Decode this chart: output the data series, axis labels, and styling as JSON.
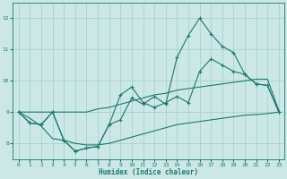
{
  "xlabel": "Humidex (Indice chaleur)",
  "x_values": [
    0,
    1,
    2,
    3,
    4,
    5,
    6,
    7,
    8,
    9,
    10,
    11,
    12,
    13,
    14,
    15,
    16,
    17,
    18,
    19,
    20,
    21,
    22,
    23
  ],
  "line1_marked": [
    9.0,
    8.65,
    8.6,
    9.0,
    8.1,
    7.75,
    7.85,
    7.9,
    8.6,
    8.75,
    9.45,
    9.25,
    9.5,
    9.25,
    10.75,
    11.45,
    12.0,
    11.5,
    11.1,
    10.9,
    10.2,
    9.9,
    9.85,
    9.0
  ],
  "line2_marked": [
    9.0,
    8.65,
    8.6,
    9.0,
    8.1,
    7.75,
    7.85,
    7.9,
    8.6,
    9.55,
    9.8,
    9.3,
    9.15,
    9.3,
    9.5,
    9.3,
    10.3,
    10.7,
    10.5,
    10.3,
    10.2,
    9.9,
    9.85,
    9.0
  ],
  "line3_smooth": [
    9.0,
    9.0,
    9.0,
    9.0,
    9.0,
    9.0,
    9.0,
    9.1,
    9.15,
    9.25,
    9.35,
    9.45,
    9.55,
    9.6,
    9.7,
    9.75,
    9.8,
    9.85,
    9.9,
    9.95,
    10.0,
    10.05,
    10.05,
    9.05
  ],
  "line4_smooth": [
    9.0,
    8.8,
    8.55,
    8.15,
    8.1,
    8.0,
    7.95,
    7.95,
    8.0,
    8.1,
    8.2,
    8.3,
    8.4,
    8.5,
    8.6,
    8.65,
    8.7,
    8.75,
    8.8,
    8.85,
    8.9,
    8.92,
    8.95,
    9.0
  ],
  "line_color": "#1a7a6e",
  "bg_color": "#cce8e6",
  "grid_color": "#9ecece",
  "ylim": [
    7.5,
    12.5
  ],
  "yticks": [
    8,
    9,
    10,
    11,
    12
  ],
  "xticks": [
    0,
    1,
    2,
    3,
    4,
    5,
    6,
    7,
    8,
    9,
    10,
    11,
    12,
    13,
    14,
    15,
    16,
    17,
    18,
    19,
    20,
    21,
    22,
    23
  ]
}
